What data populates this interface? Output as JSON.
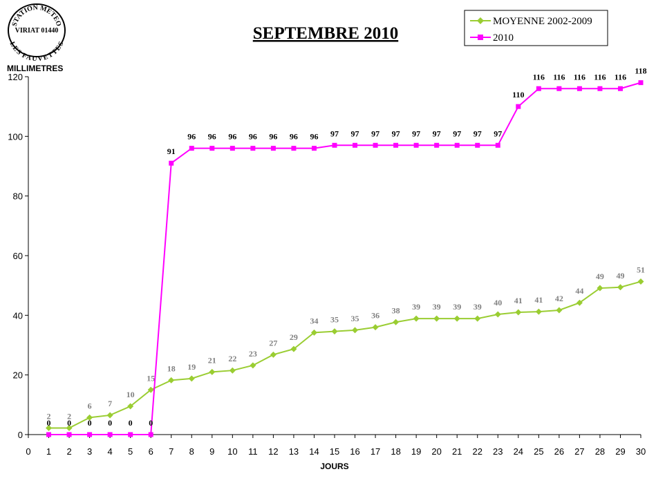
{
  "stamp": {
    "top": "STATION METEO",
    "middle": "VIRIAT 01440",
    "bottom": "LES FAUVETTES"
  },
  "chart_data": {
    "type": "line",
    "title": "SEPTEMBRE 2010",
    "xlabel": "JOURS",
    "ylabel": "MILLIMETRES",
    "xlim": [
      0,
      30
    ],
    "ylim": [
      0,
      120
    ],
    "x_ticks": [
      0,
      1,
      2,
      3,
      4,
      5,
      6,
      7,
      8,
      9,
      10,
      11,
      12,
      13,
      14,
      15,
      16,
      17,
      18,
      19,
      20,
      21,
      22,
      23,
      24,
      25,
      26,
      27,
      28,
      29,
      30
    ],
    "y_ticks": [
      0,
      20,
      40,
      60,
      80,
      100,
      120
    ],
    "grid": false,
    "legend_position": "top-right",
    "x": [
      1,
      2,
      3,
      4,
      5,
      6,
      7,
      8,
      9,
      10,
      11,
      12,
      13,
      14,
      15,
      16,
      17,
      18,
      19,
      20,
      21,
      22,
      23,
      24,
      25,
      26,
      27,
      28,
      29,
      30
    ],
    "series": [
      {
        "name": "MOYENNE 2002-2009",
        "color": "#9ACD32",
        "marker": "diamond",
        "values": [
          2.2,
          2.2,
          5.7,
          6.5,
          9.5,
          15,
          18.2,
          18.8,
          21,
          21.5,
          23.2,
          26.8,
          28.7,
          34.2,
          34.6,
          35,
          36,
          37.7,
          38.9,
          38.9,
          38.9,
          38.9,
          40.3,
          41,
          41.2,
          41.7,
          44.2,
          49.1,
          49.4,
          51.3
        ],
        "labels": [
          "2",
          "2",
          "6",
          "7",
          "10",
          "15",
          "18",
          "19",
          "21",
          "22",
          "23",
          "27",
          "29",
          "34",
          "35",
          "35",
          "36",
          "38",
          "39",
          "39",
          "39",
          "39",
          "40",
          "41",
          "41",
          "42",
          "44",
          "49",
          "49",
          "51"
        ]
      },
      {
        "name": "2010",
        "color": "#FF00FF",
        "marker": "square",
        "values": [
          0,
          0,
          0,
          0,
          0,
          0,
          91,
          96,
          96,
          96,
          96,
          96,
          96,
          96,
          97,
          97,
          97,
          97,
          97,
          97,
          97,
          97,
          97,
          110,
          116,
          116,
          116,
          116,
          116,
          118
        ],
        "labels": [
          "0",
          "0",
          "0",
          "0",
          "0",
          "0",
          "91",
          "96",
          "96",
          "96",
          "96",
          "96",
          "96",
          "96",
          "97",
          "97",
          "97",
          "97",
          "97",
          "97",
          "97",
          "97",
          "97",
          "110",
          "116",
          "116",
          "116",
          "116",
          "116",
          "118"
        ]
      }
    ]
  }
}
